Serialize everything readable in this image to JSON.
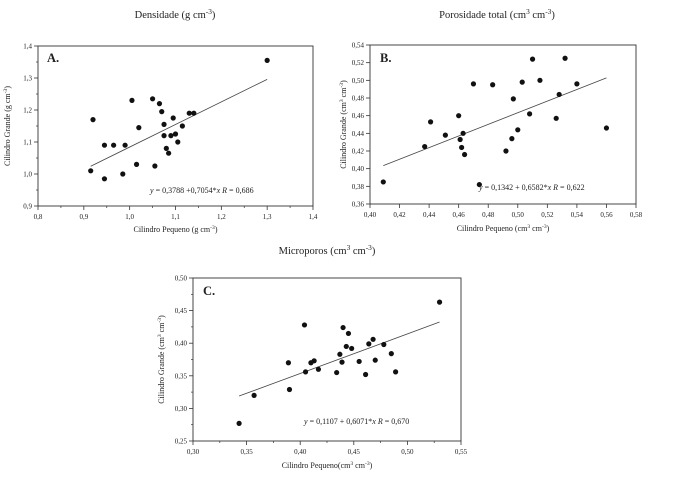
{
  "chart_data": [
    {
      "type": "scatter",
      "title": "Densidade (g cm-3)",
      "panel_label": "A.",
      "xlabel": "Cilindro Pequeno (g cm-3)",
      "ylabel": "Cilindro Grande (g cm-3)",
      "xlim": [
        0.8,
        1.4
      ],
      "ylim": [
        0.9,
        1.4
      ],
      "xticks": [
        "0,8",
        "0,9",
        "1,0",
        "1,1",
        "1,2",
        "1,3",
        "1,4"
      ],
      "yticks": [
        "0,9",
        "1,0",
        "1,1",
        "1,2",
        "1,3",
        "1,4"
      ],
      "equation": "y = 0,3788 +0,7054*x R = 0,686",
      "fit": {
        "intercept": 0.3788,
        "slope": 0.7054
      },
      "x": [
        0.915,
        0.92,
        0.945,
        0.945,
        0.965,
        0.985,
        0.99,
        1.005,
        1.015,
        1.02,
        1.05,
        1.055,
        1.065,
        1.07,
        1.075,
        1.075,
        1.08,
        1.085,
        1.09,
        1.095,
        1.1,
        1.105,
        1.115,
        1.13,
        1.14,
        1.3
      ],
      "y": [
        1.01,
        1.17,
        1.09,
        0.985,
        1.09,
        1.0,
        1.09,
        1.23,
        1.03,
        1.145,
        1.235,
        1.025,
        1.22,
        1.195,
        1.12,
        1.155,
        1.08,
        1.065,
        1.12,
        1.175,
        1.125,
        1.1,
        1.15,
        1.19,
        1.19,
        1.355
      ]
    },
    {
      "type": "scatter",
      "title": "Porosidade total (cm3 cm-3)",
      "panel_label": "B.",
      "xlabel": "Cilindro Pequeno (cm3 cm-3)",
      "ylabel": "Cilindro Grande (cm3 cm-3)",
      "xlim": [
        0.4,
        0.58
      ],
      "ylim": [
        0.36,
        0.54
      ],
      "xticks": [
        "0,40",
        "0,42",
        "0,44",
        "0,46",
        "0,48",
        "0,50",
        "0,52",
        "0,54",
        "0,56",
        "0,58"
      ],
      "yticks": [
        "0,36",
        "0,38",
        "0,40",
        "0,42",
        "0,44",
        "0,46",
        "0,48",
        "0,50",
        "0,52",
        "0,54"
      ],
      "equation": "y = 0,1342 + 0,6582*x R = 0,622",
      "fit": {
        "intercept": 0.1342,
        "slope": 0.6582
      },
      "x": [
        0.409,
        0.437,
        0.441,
        0.451,
        0.46,
        0.461,
        0.462,
        0.464,
        0.463,
        0.47,
        0.474,
        0.483,
        0.492,
        0.496,
        0.497,
        0.5,
        0.503,
        0.508,
        0.51,
        0.515,
        0.526,
        0.528,
        0.532,
        0.54,
        0.56
      ],
      "y": [
        0.385,
        0.425,
        0.453,
        0.438,
        0.46,
        0.433,
        0.424,
        0.416,
        0.44,
        0.496,
        0.382,
        0.495,
        0.42,
        0.434,
        0.479,
        0.444,
        0.498,
        0.462,
        0.524,
        0.5,
        0.457,
        0.484,
        0.525,
        0.496,
        0.446
      ]
    },
    {
      "type": "scatter",
      "title": "Microporos (cm3 cm-3)",
      "panel_label": "C.",
      "xlabel": "Cilindro Pequeno(cm3 cm-3)",
      "ylabel": "Cilindro Grande (cm3 cm-3)",
      "xlim": [
        0.3,
        0.55
      ],
      "ylim": [
        0.25,
        0.5
      ],
      "xticks": [
        "0,30",
        "0,35",
        "0,40",
        "0,45",
        "0,50",
        "0,55"
      ],
      "yticks": [
        "0,25",
        "0,30",
        "0,35",
        "0,40",
        "0,45",
        "0,50"
      ],
      "equation": "y = 0,1107 + 0,6071*x R = 0,670",
      "fit": {
        "intercept": 0.1107,
        "slope": 0.6071
      },
      "x": [
        0.343,
        0.357,
        0.389,
        0.39,
        0.404,
        0.405,
        0.41,
        0.413,
        0.417,
        0.434,
        0.437,
        0.439,
        0.44,
        0.443,
        0.445,
        0.448,
        0.455,
        0.461,
        0.464,
        0.468,
        0.47,
        0.478,
        0.485,
        0.489,
        0.53
      ],
      "y": [
        0.277,
        0.32,
        0.37,
        0.329,
        0.428,
        0.356,
        0.37,
        0.373,
        0.36,
        0.355,
        0.383,
        0.371,
        0.424,
        0.395,
        0.415,
        0.392,
        0.372,
        0.352,
        0.399,
        0.406,
        0.374,
        0.398,
        0.384,
        0.356,
        0.463
      ]
    }
  ]
}
